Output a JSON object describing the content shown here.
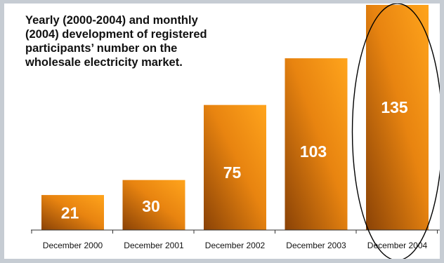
{
  "chart_data": {
    "type": "bar",
    "title": "Yearly (2000-2004) and monthly (2004) development of registered participants’ number on the wholesale electricity market.",
    "categories": [
      "December 2000",
      "December 2001",
      "December 2002",
      "December 2003",
      "December 2004"
    ],
    "values": [
      21,
      30,
      75,
      103,
      135
    ],
    "ylim": [
      0,
      135
    ],
    "grid": false,
    "legend": "none",
    "highlighted_category": "December 2004",
    "highlight_shape": "ellipse-outline",
    "colors": {
      "bar_light": "#ffa41c",
      "bar_dark": "#8a4206",
      "label": "#ffffff",
      "axis": "#333333",
      "frame": "#c6ccd3"
    }
  }
}
